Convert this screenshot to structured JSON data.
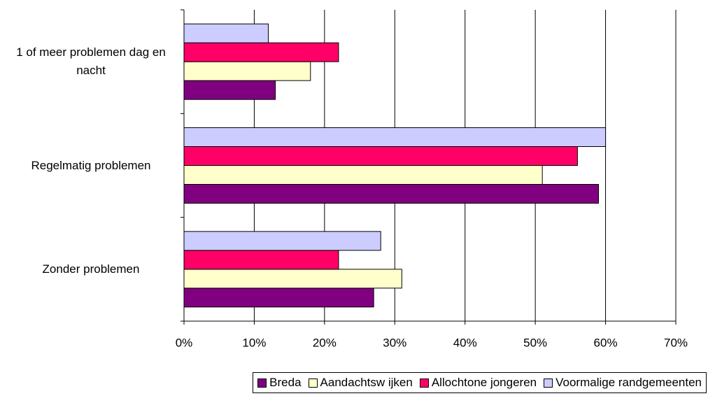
{
  "chart_data": {
    "type": "hbar",
    "categories": [
      "1 of meer problemen dag en nacht",
      "Regelmatig problemen",
      "Zonder problemen"
    ],
    "series": [
      {
        "name": "Breda",
        "color": "#800080",
        "values": [
          13,
          59,
          27
        ]
      },
      {
        "name": "Aandachtsw ijken",
        "color": "#FFFFCC",
        "values": [
          18,
          51,
          31
        ]
      },
      {
        "name": "Allochtone jongeren",
        "color": "#FF0066",
        "values": [
          22,
          56,
          22
        ]
      },
      {
        "name": "Voormalige randgemeenten",
        "color": "#CCCCFF",
        "values": [
          12,
          60,
          28
        ]
      }
    ],
    "xlim": [
      0,
      70
    ],
    "xticks": [
      {
        "value": 0,
        "label": "0%"
      },
      {
        "value": 10,
        "label": "10%"
      },
      {
        "value": 20,
        "label": "20%"
      },
      {
        "value": 30,
        "label": "30%"
      },
      {
        "value": 40,
        "label": "40%"
      },
      {
        "value": 50,
        "label": "50%"
      },
      {
        "value": 60,
        "label": "60%"
      },
      {
        "value": 70,
        "label": "70%"
      }
    ],
    "grid": true,
    "legend": "bottom-right"
  }
}
